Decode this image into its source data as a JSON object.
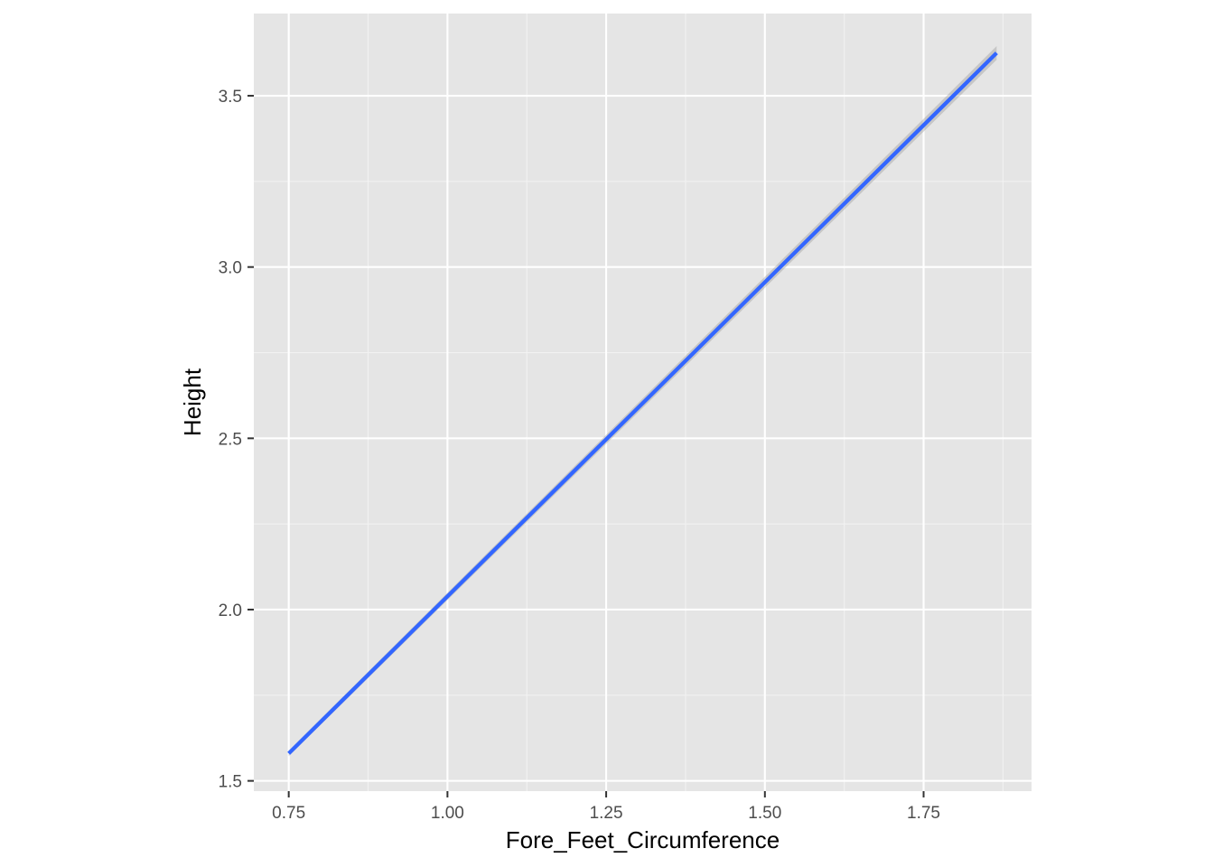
{
  "chart_data": {
    "type": "line",
    "title": "",
    "xlabel": "Fore_Feet_Circumference",
    "ylabel": "Height",
    "xlim": [
      0.695,
      1.92
    ],
    "ylim": [
      1.47,
      3.74
    ],
    "x_ticks": [
      0.75,
      1.0,
      1.25,
      1.5,
      1.75
    ],
    "x_tick_labels": [
      "0.75",
      "1.00",
      "1.25",
      "1.50",
      "1.75"
    ],
    "y_ticks": [
      1.5,
      2.0,
      2.5,
      3.0,
      3.5
    ],
    "y_tick_labels": [
      "1.5",
      "2.0",
      "2.5",
      "3.0",
      "3.5"
    ],
    "x_minor_ticks": [
      0.875,
      1.125,
      1.375,
      1.625,
      1.875
    ],
    "y_minor_ticks": [
      1.75,
      2.25,
      2.75,
      3.25
    ],
    "grid": true,
    "series": [
      {
        "x": [
          0.75,
          1.865
        ],
        "y": [
          1.58,
          3.625
        ],
        "color": "#3366FF",
        "confidence_band": {
          "lower": [
            1.572,
            3.605
          ],
          "upper": [
            1.588,
            3.645
          ],
          "color": "#999999"
        }
      }
    ],
    "colors": {
      "panel_background": "#E5E5E5",
      "grid_major": "#FFFFFF",
      "grid_minor": "#F2F2F2",
      "tick": "#333333",
      "tick_label": "#4D4D4D"
    }
  }
}
